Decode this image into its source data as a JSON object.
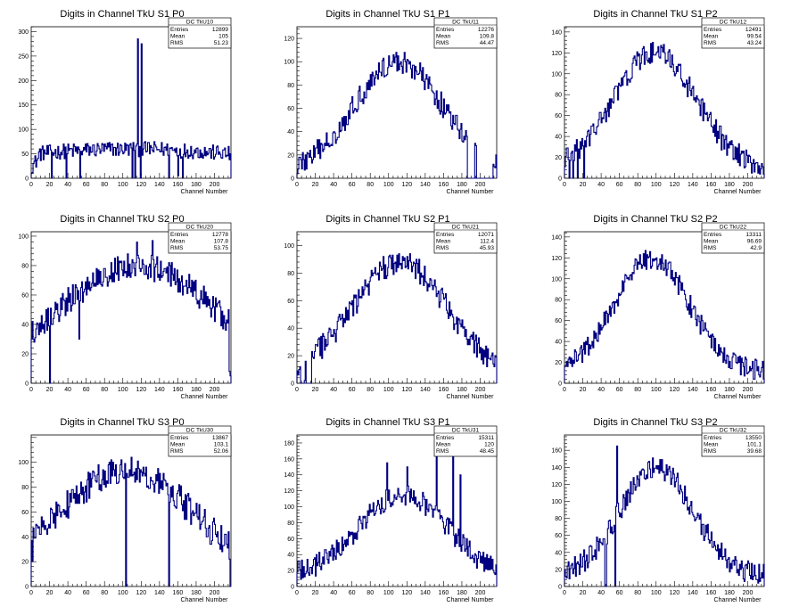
{
  "colors": {
    "histogram": "#000080",
    "axis": "#000000",
    "background": "#ffffff"
  },
  "chart_data": [
    {
      "type": "bar",
      "title": "Digits in Channel TkU S1 P0",
      "xlabel": "Channel Number",
      "ylabel": "",
      "xlim": [
        0,
        218
      ],
      "ylim": [
        0,
        310
      ],
      "xticks": [
        0,
        20,
        40,
        60,
        80,
        100,
        120,
        140,
        160,
        180,
        200
      ],
      "yticks": [
        0,
        50,
        100,
        150,
        200,
        250,
        300
      ],
      "stats": {
        "name": "DC_TkU10",
        "entries_label": "Entries",
        "entries": "12899",
        "mean_label": "Mean",
        "mean": "105",
        "rms_label": "RMS",
        "rms": "51.23"
      },
      "profile": {
        "shape": "flat",
        "peak": 60,
        "base": 40,
        "edge": 0.55,
        "noise": 16
      },
      "spikes": [
        [
          116,
          285
        ],
        [
          119,
          0
        ],
        [
          120,
          275
        ],
        [
          110,
          0
        ],
        [
          113,
          0
        ],
        [
          38,
          0
        ],
        [
          53,
          0
        ],
        [
          22,
          0
        ],
        [
          150,
          0
        ],
        [
          165,
          0
        ],
        [
          160,
          5
        ]
      ],
      "series": [
        {
          "values": []
        }
      ]
    },
    {
      "type": "bar",
      "title": "Digits in Channel TkU S1 P1",
      "xlabel": "Channel Number",
      "ylabel": "",
      "xlim": [
        0,
        218
      ],
      "ylim": [
        0,
        130
      ],
      "xticks": [
        0,
        20,
        40,
        60,
        80,
        100,
        120,
        140,
        160,
        180,
        200
      ],
      "yticks": [
        0,
        20,
        40,
        60,
        80,
        100,
        120
      ],
      "stats": {
        "name": "DC_TkU11",
        "entries_label": "Entries",
        "entries": "12276",
        "mean_label": "Mean",
        "mean": "109.8",
        "rms_label": "RMS",
        "rms": "44.47"
      },
      "profile": {
        "shape": "gauss",
        "center": 110,
        "sigma": 48,
        "peak": 100,
        "base": 5,
        "noise": 10
      },
      "spikes": [
        [
          186,
          0
        ],
        [
          187,
          0
        ],
        [
          188,
          0
        ],
        [
          189,
          0
        ],
        [
          190,
          0
        ],
        [
          191,
          0
        ],
        [
          192,
          0
        ],
        [
          193,
          0
        ],
        [
          199,
          0
        ],
        [
          201,
          0
        ],
        [
          204,
          0
        ],
        [
          205,
          0
        ],
        [
          206,
          0
        ],
        [
          207,
          0
        ],
        [
          210,
          0
        ],
        [
          211,
          0
        ],
        [
          212,
          0
        ],
        [
          213,
          0
        ],
        [
          208,
          0
        ],
        [
          209,
          0
        ],
        [
          195,
          28
        ],
        [
          196,
          0
        ],
        [
          197,
          0
        ],
        [
          198,
          0
        ],
        [
          200,
          0
        ],
        [
          202,
          0
        ],
        [
          203,
          0
        ]
      ],
      "series": [
        {
          "values": []
        }
      ]
    },
    {
      "type": "bar",
      "title": "Digits in Channel TkU S1 P2",
      "xlabel": "Channel Number",
      "ylabel": "",
      "xlim": [
        0,
        218
      ],
      "ylim": [
        0,
        145
      ],
      "xticks": [
        0,
        20,
        40,
        60,
        80,
        100,
        120,
        140,
        160,
        180,
        200
      ],
      "yticks": [
        0,
        20,
        40,
        60,
        80,
        100,
        120,
        140
      ],
      "stats": {
        "name": "DC_TkU12",
        "entries_label": "Entries",
        "entries": "12491",
        "mean_label": "Mean",
        "mean": "99.54",
        "rms_label": "RMS",
        "rms": "43.24"
      },
      "profile": {
        "shape": "gauss",
        "center": 98,
        "sigma": 45,
        "peak": 120,
        "base": 8,
        "noise": 11
      },
      "spikes": [
        [
          5,
          0
        ],
        [
          9,
          0
        ],
        [
          21,
          0
        ],
        [
          14,
          0
        ]
      ],
      "series": [
        {
          "values": []
        }
      ]
    },
    {
      "type": "bar",
      "title": "Digits in Channel TkU S2 P0",
      "xlabel": "Channel Number",
      "ylabel": "",
      "xlim": [
        0,
        218
      ],
      "ylim": [
        0,
        103
      ],
      "xticks": [
        0,
        20,
        40,
        60,
        80,
        100,
        120,
        140,
        160,
        180,
        200
      ],
      "yticks": [
        0,
        20,
        40,
        60,
        80,
        100
      ],
      "stats": {
        "name": "DC_TkU20",
        "entries_label": "Entries",
        "entries": "12778",
        "mean_label": "Mean",
        "mean": "107.8",
        "rms_label": "RMS",
        "rms": "53.75"
      },
      "profile": {
        "shape": "gauss",
        "center": 115,
        "sigma": 85,
        "peak": 80,
        "base": 5,
        "noise": 9
      },
      "spikes": [
        [
          20,
          0
        ],
        [
          52,
          30
        ],
        [
          216,
          8
        ],
        [
          217,
          5
        ],
        [
          115,
          96
        ],
        [
          132,
          97
        ]
      ],
      "series": [
        {
          "values": []
        }
      ]
    },
    {
      "type": "bar",
      "title": "Digits in Channel TkU S2 P1",
      "xlabel": "Channel Number",
      "ylabel": "",
      "xlim": [
        0,
        218
      ],
      "ylim": [
        0,
        110
      ],
      "xticks": [
        0,
        20,
        40,
        60,
        80,
        100,
        120,
        140,
        160,
        180,
        200
      ],
      "yticks": [
        0,
        20,
        40,
        60,
        80,
        100
      ],
      "stats": {
        "name": "DC_TkU21",
        "entries_label": "Entries",
        "entries": "12071",
        "mean_label": "Mean",
        "mean": "112.4",
        "rms_label": "RMS",
        "rms": "45.93"
      },
      "profile": {
        "shape": "gauss",
        "center": 112,
        "sigma": 52,
        "peak": 88,
        "base": 4,
        "noise": 9
      },
      "spikes": [
        [
          4,
          0
        ],
        [
          5,
          0
        ],
        [
          6,
          0
        ],
        [
          7,
          0
        ],
        [
          10,
          0
        ],
        [
          11,
          0
        ],
        [
          12,
          0
        ],
        [
          13,
          0
        ],
        [
          14,
          0
        ],
        [
          15,
          0
        ],
        [
          3,
          12
        ],
        [
          8,
          2
        ]
      ],
      "series": [
        {
          "values": []
        }
      ]
    },
    {
      "type": "bar",
      "title": "Digits in Channel TkU S2 P2",
      "xlabel": "Channel Number",
      "ylabel": "",
      "xlim": [
        0,
        218
      ],
      "ylim": [
        0,
        145
      ],
      "xticks": [
        0,
        20,
        40,
        60,
        80,
        100,
        120,
        140,
        160,
        180,
        200
      ],
      "yticks": [
        0,
        20,
        40,
        60,
        80,
        100,
        120,
        140
      ],
      "stats": {
        "name": "DC_TkU22",
        "entries_label": "Entries",
        "entries": "13311",
        "mean_label": "Mean",
        "mean": "96.69",
        "rms_label": "RMS",
        "rms": "42.9"
      },
      "profile": {
        "shape": "gauss",
        "center": 95,
        "sigma": 40,
        "peak": 120,
        "base": 12,
        "noise": 10
      },
      "spikes": [],
      "series": [
        {
          "values": []
        }
      ]
    },
    {
      "type": "bar",
      "title": "Digits in Channel TkU S3 P0",
      "xlabel": "Channel Number",
      "ylabel": "",
      "xlim": [
        0,
        218
      ],
      "ylim": [
        0,
        122
      ],
      "xticks": [
        0,
        20,
        40,
        60,
        80,
        100,
        120,
        140,
        160,
        180,
        200
      ],
      "yticks": [
        0,
        20,
        40,
        60,
        80,
        100
      ],
      "stats": {
        "name": "DC_TkU30",
        "entries_label": "Entries",
        "entries": "13867",
        "mean_label": "Mean",
        "mean": "103.1",
        "rms_label": "RMS",
        "rms": "52.06"
      },
      "profile": {
        "shape": "gauss",
        "center": 103,
        "sigma": 70,
        "peak": 95,
        "base": 10,
        "noise": 12
      },
      "spikes": [
        [
          103,
          0
        ],
        [
          150,
          0
        ],
        [
          217,
          0
        ],
        [
          1,
          20
        ]
      ],
      "series": [
        {
          "values": []
        }
      ]
    },
    {
      "type": "bar",
      "title": "Digits in Channel TkU S3 P1",
      "xlabel": "Channel Number",
      "ylabel": "",
      "xlim": [
        0,
        218
      ],
      "ylim": [
        0,
        190
      ],
      "xticks": [
        0,
        20,
        40,
        60,
        80,
        100,
        120,
        140,
        160,
        180,
        200
      ],
      "yticks": [
        0,
        20,
        40,
        60,
        80,
        100,
        120,
        140,
        160,
        180
      ],
      "stats": {
        "name": "DC_TkU31",
        "entries_label": "Entries",
        "entries": "15311",
        "mean_label": "Mean",
        "mean": "120",
        "rms_label": "RMS",
        "rms": "48.45"
      },
      "profile": {
        "shape": "gauss",
        "center": 115,
        "sigma": 48,
        "peak": 115,
        "base": 12,
        "noise": 14
      },
      "spikes": [
        [
          98,
          155
        ],
        [
          120,
          150
        ],
        [
          152,
          172
        ],
        [
          170,
          172
        ],
        [
          178,
          140
        ]
      ],
      "series": [
        {
          "values": []
        }
      ]
    },
    {
      "type": "bar",
      "title": "Digits in Channel TkU S3 P2",
      "xlabel": "Channel Number",
      "ylabel": "",
      "xlim": [
        0,
        218
      ],
      "ylim": [
        0,
        178
      ],
      "xticks": [
        0,
        20,
        40,
        60,
        80,
        100,
        120,
        140,
        160,
        180,
        200
      ],
      "yticks": [
        0,
        20,
        40,
        60,
        80,
        100,
        120,
        140,
        160
      ],
      "stats": {
        "name": "DC_TkU32",
        "entries_label": "Entries",
        "entries": "13550",
        "mean_label": "Mean",
        "mean": "101.1",
        "rms_label": "RMS",
        "rms": "39.68"
      },
      "profile": {
        "shape": "gauss",
        "center": 100,
        "sigma": 40,
        "peak": 140,
        "base": 12,
        "noise": 13
      },
      "spikes": [
        [
          57,
          165
        ],
        [
          55,
          0
        ],
        [
          44,
          0
        ],
        [
          45,
          0
        ]
      ],
      "series": [
        {
          "values": []
        }
      ]
    }
  ]
}
